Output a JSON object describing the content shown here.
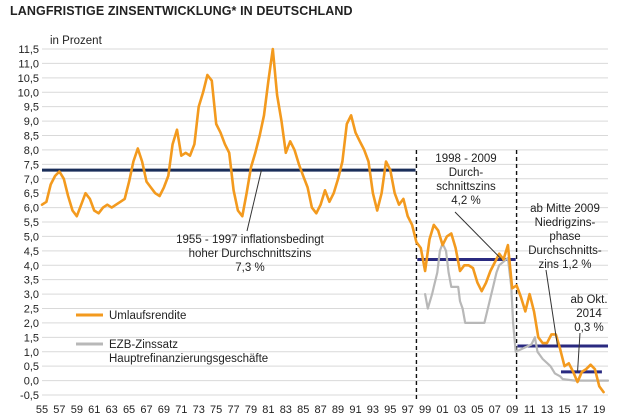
{
  "title": "LANGFRISTIGE ZINSENTWICKLUNG* IN DEUTSCHLAND",
  "chart_data": {
    "type": "line",
    "unit_label": "in Prozent",
    "ylim": [
      -0.5,
      11.5
    ],
    "y_ticks": [
      "-0,5",
      "0,0",
      "0,5",
      "1,0",
      "1,5",
      "2,0",
      "2,5",
      "3,0",
      "3,5",
      "4,0",
      "4,5",
      "5,0",
      "5,5",
      "6,0",
      "6,5",
      "7,0",
      "7,5",
      "8,0",
      "8,5",
      "9,0",
      "9,5",
      "10,0",
      "10,5",
      "11,0",
      "11,5"
    ],
    "x_ticks": [
      "55",
      "57",
      "59",
      "61",
      "63",
      "65",
      "67",
      "69",
      "71",
      "73",
      "75",
      "77",
      "79",
      "81",
      "83",
      "85",
      "87",
      "89",
      "91",
      "93",
      "95",
      "97",
      "99",
      "01",
      "03",
      "05",
      "07",
      "09",
      "11",
      "13",
      "15",
      "17",
      "19"
    ],
    "xlim": [
      1955,
      2020
    ],
    "grid": true,
    "colors": {
      "umlauf": "#f39a1e",
      "ezb": "#b8b8b8",
      "avg": "#1a2e5a",
      "period": "#2a2a80",
      "grid": "#d9d9d9",
      "divider": "#111111"
    },
    "series": [
      {
        "name": "Umlaufsrendite",
        "points": [
          [
            1955.0,
            6.1
          ],
          [
            1955.5,
            6.2
          ],
          [
            1956.0,
            6.8
          ],
          [
            1956.5,
            7.1
          ],
          [
            1957.0,
            7.25
          ],
          [
            1957.5,
            7.0
          ],
          [
            1958.0,
            6.4
          ],
          [
            1958.5,
            5.9
          ],
          [
            1959.0,
            5.7
          ],
          [
            1959.5,
            6.1
          ],
          [
            1960.0,
            6.5
          ],
          [
            1960.5,
            6.3
          ],
          [
            1961.0,
            5.9
          ],
          [
            1961.5,
            5.8
          ],
          [
            1962.0,
            6.0
          ],
          [
            1962.5,
            6.1
          ],
          [
            1963.0,
            6.0
          ],
          [
            1963.5,
            6.1
          ],
          [
            1964.0,
            6.2
          ],
          [
            1964.5,
            6.3
          ],
          [
            1965.0,
            6.9
          ],
          [
            1965.5,
            7.6
          ],
          [
            1966.0,
            8.05
          ],
          [
            1966.5,
            7.6
          ],
          [
            1967.0,
            6.9
          ],
          [
            1967.5,
            6.7
          ],
          [
            1968.0,
            6.5
          ],
          [
            1968.5,
            6.4
          ],
          [
            1969.0,
            6.7
          ],
          [
            1969.5,
            7.1
          ],
          [
            1970.0,
            8.2
          ],
          [
            1970.5,
            8.7
          ],
          [
            1971.0,
            7.8
          ],
          [
            1971.5,
            7.9
          ],
          [
            1972.0,
            7.8
          ],
          [
            1972.5,
            8.2
          ],
          [
            1973.0,
            9.5
          ],
          [
            1973.5,
            10.0
          ],
          [
            1974.0,
            10.6
          ],
          [
            1974.5,
            10.4
          ],
          [
            1975.0,
            8.9
          ],
          [
            1975.5,
            8.6
          ],
          [
            1976.0,
            8.2
          ],
          [
            1976.5,
            7.9
          ],
          [
            1977.0,
            6.6
          ],
          [
            1977.5,
            5.9
          ],
          [
            1978.0,
            5.7
          ],
          [
            1978.5,
            6.5
          ],
          [
            1979.0,
            7.4
          ],
          [
            1979.5,
            7.9
          ],
          [
            1980.0,
            8.5
          ],
          [
            1980.5,
            9.2
          ],
          [
            1981.0,
            10.4
          ],
          [
            1981.5,
            11.5
          ],
          [
            1982.0,
            9.9
          ],
          [
            1982.5,
            9.0
          ],
          [
            1983.0,
            7.9
          ],
          [
            1983.5,
            8.3
          ],
          [
            1984.0,
            8.0
          ],
          [
            1984.5,
            7.5
          ],
          [
            1985.0,
            7.1
          ],
          [
            1985.5,
            6.7
          ],
          [
            1986.0,
            6.0
          ],
          [
            1986.5,
            5.8
          ],
          [
            1987.0,
            6.1
          ],
          [
            1987.5,
            6.6
          ],
          [
            1988.0,
            6.2
          ],
          [
            1988.5,
            6.5
          ],
          [
            1989.0,
            7.0
          ],
          [
            1989.5,
            7.6
          ],
          [
            1990.0,
            8.9
          ],
          [
            1990.5,
            9.2
          ],
          [
            1991.0,
            8.6
          ],
          [
            1991.5,
            8.3
          ],
          [
            1992.0,
            8.0
          ],
          [
            1992.5,
            7.6
          ],
          [
            1993.0,
            6.5
          ],
          [
            1993.5,
            5.9
          ],
          [
            1994.0,
            6.5
          ],
          [
            1994.5,
            7.6
          ],
          [
            1995.0,
            7.3
          ],
          [
            1995.5,
            6.5
          ],
          [
            1996.0,
            6.1
          ],
          [
            1996.5,
            6.3
          ],
          [
            1997.0,
            5.7
          ],
          [
            1997.5,
            5.4
          ],
          [
            1998.0,
            4.8
          ],
          [
            1998.5,
            4.6
          ],
          [
            1999.0,
            3.8
          ],
          [
            1999.5,
            4.9
          ],
          [
            2000.0,
            5.4
          ],
          [
            2000.5,
            5.2
          ],
          [
            2001.0,
            4.7
          ],
          [
            2001.5,
            5.0
          ],
          [
            2002.0,
            5.1
          ],
          [
            2002.5,
            4.6
          ],
          [
            2003.0,
            3.8
          ],
          [
            2003.5,
            4.0
          ],
          [
            2004.0,
            4.0
          ],
          [
            2004.5,
            3.9
          ],
          [
            2005.0,
            3.4
          ],
          [
            2005.5,
            3.1
          ],
          [
            2006.0,
            3.4
          ],
          [
            2006.5,
            3.8
          ],
          [
            2007.0,
            4.1
          ],
          [
            2007.5,
            4.4
          ],
          [
            2008.0,
            4.2
          ],
          [
            2008.5,
            4.7
          ],
          [
            2009.0,
            3.2
          ],
          [
            2009.5,
            3.3
          ],
          [
            2010.0,
            2.9
          ],
          [
            2010.5,
            2.4
          ],
          [
            2011.0,
            3.0
          ],
          [
            2011.5,
            2.4
          ],
          [
            2012.0,
            1.5
          ],
          [
            2012.5,
            1.3
          ],
          [
            2013.0,
            1.3
          ],
          [
            2013.5,
            1.6
          ],
          [
            2014.0,
            1.6
          ],
          [
            2014.5,
            1.1
          ],
          [
            2015.0,
            0.5
          ],
          [
            2015.5,
            0.6
          ],
          [
            2016.0,
            0.3
          ],
          [
            2016.5,
            -0.05
          ],
          [
            2017.0,
            0.3
          ],
          [
            2017.5,
            0.4
          ],
          [
            2018.0,
            0.55
          ],
          [
            2018.5,
            0.4
          ],
          [
            2019.0,
            -0.2
          ],
          [
            2019.5,
            -0.4
          ]
        ]
      },
      {
        "name": "EZB-Zinssatz Hauptrefinanzierungsgeschäfte",
        "points": [
          [
            1999.0,
            3.0
          ],
          [
            1999.3,
            2.5
          ],
          [
            1999.8,
            3.0
          ],
          [
            2000.0,
            3.25
          ],
          [
            2000.4,
            3.75
          ],
          [
            2000.7,
            4.5
          ],
          [
            2001.0,
            4.75
          ],
          [
            2001.4,
            4.5
          ],
          [
            2001.7,
            3.75
          ],
          [
            2002.0,
            3.25
          ],
          [
            2002.8,
            3.25
          ],
          [
            2003.0,
            2.75
          ],
          [
            2003.3,
            2.5
          ],
          [
            2003.6,
            2.0
          ],
          [
            2005.8,
            2.0
          ],
          [
            2006.0,
            2.25
          ],
          [
            2006.4,
            2.75
          ],
          [
            2006.8,
            3.25
          ],
          [
            2007.2,
            3.75
          ],
          [
            2007.5,
            4.0
          ],
          [
            2008.5,
            4.25
          ],
          [
            2008.9,
            3.25
          ],
          [
            2009.1,
            2.0
          ],
          [
            2009.4,
            1.0
          ],
          [
            2011.2,
            1.25
          ],
          [
            2011.6,
            1.5
          ],
          [
            2011.9,
            1.0
          ],
          [
            2012.5,
            0.75
          ],
          [
            2013.4,
            0.5
          ],
          [
            2013.9,
            0.25
          ],
          [
            2014.5,
            0.15
          ],
          [
            2014.8,
            0.05
          ],
          [
            2016.2,
            0.0
          ],
          [
            2020.0,
            0.0
          ]
        ]
      }
    ],
    "averages": [
      {
        "from": 1955,
        "to": 1997.9,
        "value": 7.3,
        "label": [
          "1955 - 1997 inflationsbedingt",
          "hoher Durchschnittszins",
          "7,3 %"
        ]
      },
      {
        "from": 1998.1,
        "to": 2009.4,
        "value": 4.2,
        "label": [
          "1998 - 2009",
          "Durch-",
          "schnittszins",
          "4,2 %"
        ]
      },
      {
        "from": 2009.6,
        "to": 2020.0,
        "value": 1.2,
        "label": [
          "ab Mitte 2009",
          "Niedrigzins-",
          "phase",
          "Durchschnitts-",
          "zins  1,2 %"
        ]
      },
      {
        "from": 2014.6,
        "to": 2019.3,
        "value": 0.3,
        "label": [
          "ab Okt.",
          "2014",
          "0,3 %"
        ]
      }
    ],
    "dividers": [
      1998.0,
      2009.5
    ],
    "legend": [
      {
        "label": "Umlaufsrendite",
        "color": "#f39a1e"
      },
      {
        "label": [
          "EZB-Zinssatz",
          "Hauptrefinanzierungsgeschäfte"
        ],
        "color": "#b8b8b8"
      }
    ]
  }
}
